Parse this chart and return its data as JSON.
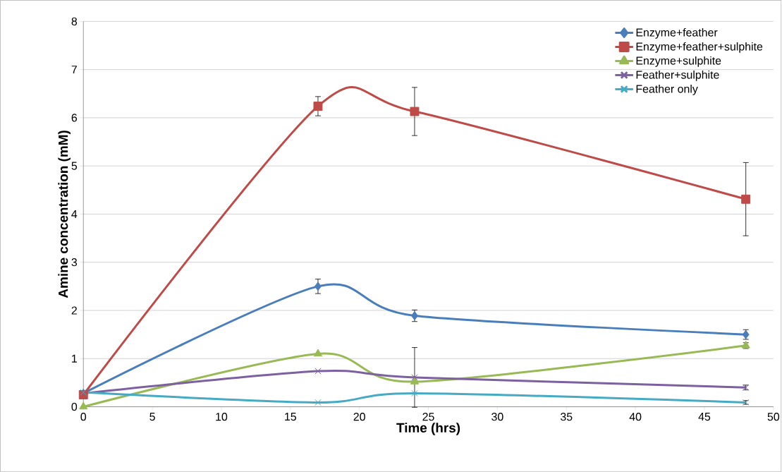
{
  "chart_data": {
    "type": "line",
    "xlabel": "Time (hrs)",
    "ylabel": "Amine concentration (mM)",
    "x": [
      0,
      17,
      24,
      48
    ],
    "series": [
      {
        "name": "Enzyme+feather",
        "color": "#4a7ebb",
        "marker": "diamond",
        "values": [
          0.28,
          2.5,
          1.89,
          1.5
        ],
        "errors": [
          null,
          0.15,
          0.12,
          0.1
        ]
      },
      {
        "name": "Enzyme+feather+sulphite",
        "color": "#be4b48",
        "marker": "square",
        "values": [
          0.25,
          6.24,
          6.13,
          4.31
        ],
        "errors": [
          null,
          0.2,
          0.5,
          0.76
        ]
      },
      {
        "name": "Enzyme+sulphite",
        "color": "#98b954",
        "marker": "triangle",
        "values": [
          0,
          1.1,
          0.52,
          1.27
        ],
        "errors": [
          null,
          null,
          null,
          0.06
        ]
      },
      {
        "name": "Feather+sulphite",
        "color": "#7d60a0",
        "marker": "cross",
        "values": [
          0.28,
          0.74,
          0.61,
          0.4
        ],
        "errors": [
          null,
          null,
          0.62,
          0.05
        ]
      },
      {
        "name": "Feather only",
        "color": "#46aac5",
        "marker": "cross",
        "values": [
          0.3,
          0.09,
          0.28,
          0.09
        ],
        "errors": [
          null,
          null,
          null,
          0.04
        ]
      }
    ],
    "xlim": [
      0,
      50
    ],
    "xticks": [
      0,
      5,
      10,
      15,
      20,
      25,
      30,
      35,
      40,
      45,
      50
    ],
    "ylim": [
      0,
      8
    ],
    "yticks": [
      0,
      1,
      2,
      3,
      4,
      5,
      6,
      7,
      8
    ],
    "grid": "y",
    "legend": "top right",
    "line_style": "solid"
  }
}
